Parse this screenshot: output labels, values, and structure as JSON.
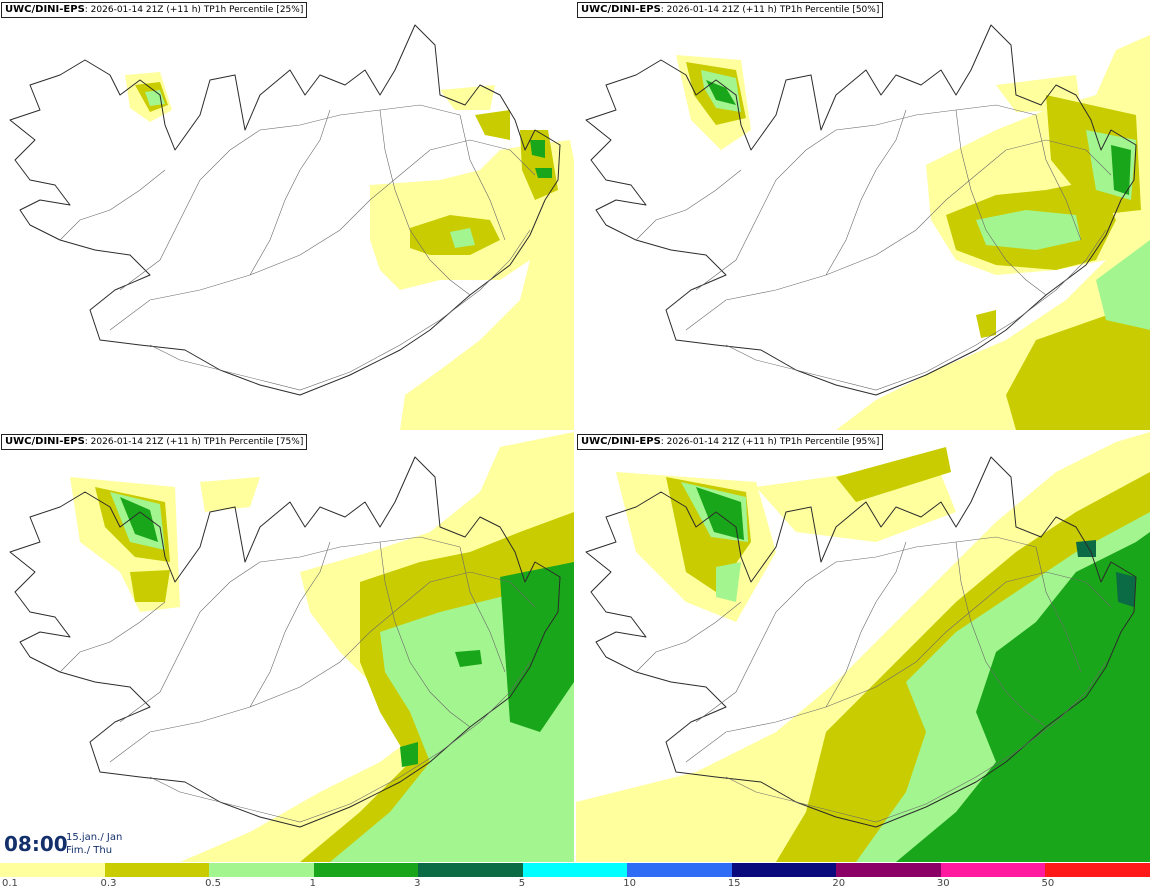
{
  "panels": [
    {
      "model": "UWC/DINI-EPS",
      "run": "2026-01-14 21Z",
      "lead": "(+11 h)",
      "param": "TP1h Percentile",
      "pct": "[25%]"
    },
    {
      "model": "UWC/DINI-EPS",
      "run": "2026-01-14 21Z",
      "lead": "(+11 h)",
      "param": "TP1h Percentile",
      "pct": "[50%]"
    },
    {
      "model": "UWC/DINI-EPS",
      "run": "2026-01-14 21Z",
      "lead": "(+11 h)",
      "param": "TP1h Percentile",
      "pct": "[75%]"
    },
    {
      "model": "UWC/DINI-EPS",
      "run": "2026-01-14 21Z",
      "lead": "(+11 h)",
      "param": "TP1h Percentile",
      "pct": "[95%]"
    }
  ],
  "valid_time": {
    "time": "08:00",
    "date_line1": "15.jan./ Jan",
    "date_line2": "Fim./ Thu"
  },
  "colorbar": {
    "labels": [
      "0.1",
      "0.3",
      "0.5",
      "1",
      "3",
      "5",
      "10",
      "15",
      "20",
      "30",
      "50"
    ],
    "colors": [
      "#ffff9e",
      "#c9cc00",
      "#a3f58f",
      "#1aa61a",
      "#0b6b44",
      "#00ffff",
      "#2f6cf5",
      "#0a0a7d",
      "#8a0066",
      "#ff1aa0",
      "#ff1a1a"
    ]
  },
  "map_colors": {
    "yellow": "#ffff9e",
    "olive": "#c9cc00",
    "lightgreen": "#a3f58f",
    "green": "#1aa61a",
    "darkgreen": "#0b6b44",
    "coast": "#2b2b2b"
  }
}
